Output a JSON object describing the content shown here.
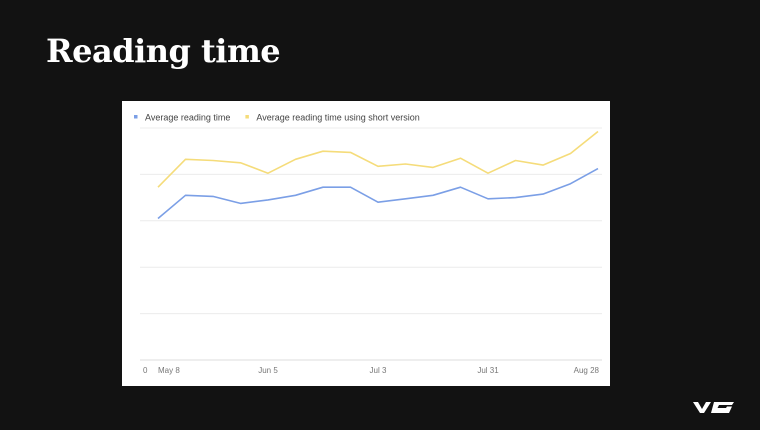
{
  "slide": {
    "title": "Reading time"
  },
  "brand": {
    "logo_icon": "vg-logo-icon"
  },
  "chart_data": {
    "type": "line",
    "legend": "top-left",
    "grid": true,
    "ylim": [
      0,
      100
    ],
    "y_zero_label": "0",
    "x_ticks": [
      {
        "label": "May 8",
        "index": 0
      },
      {
        "label": "Jun 5",
        "index": 4
      },
      {
        "label": "Jul 3",
        "index": 8
      },
      {
        "label": "Jul 31",
        "index": 12
      },
      {
        "label": "Aug 28",
        "index": 16
      }
    ],
    "series": [
      {
        "name": "Average reading time",
        "color": "#7b9fe6",
        "values": [
          61,
          71,
          70.5,
          67.5,
          69,
          71,
          74.5,
          74.5,
          68,
          69.5,
          71,
          74.5,
          69.5,
          70,
          71.5,
          76,
          82.5
        ]
      },
      {
        "name": "Average reading time using short version",
        "color": "#f5dc7a",
        "values": [
          74.5,
          86.5,
          86,
          85,
          80.5,
          86.5,
          90,
          89.5,
          83.5,
          84.5,
          83,
          87,
          80.5,
          86,
          84,
          89,
          98.5
        ]
      }
    ]
  }
}
